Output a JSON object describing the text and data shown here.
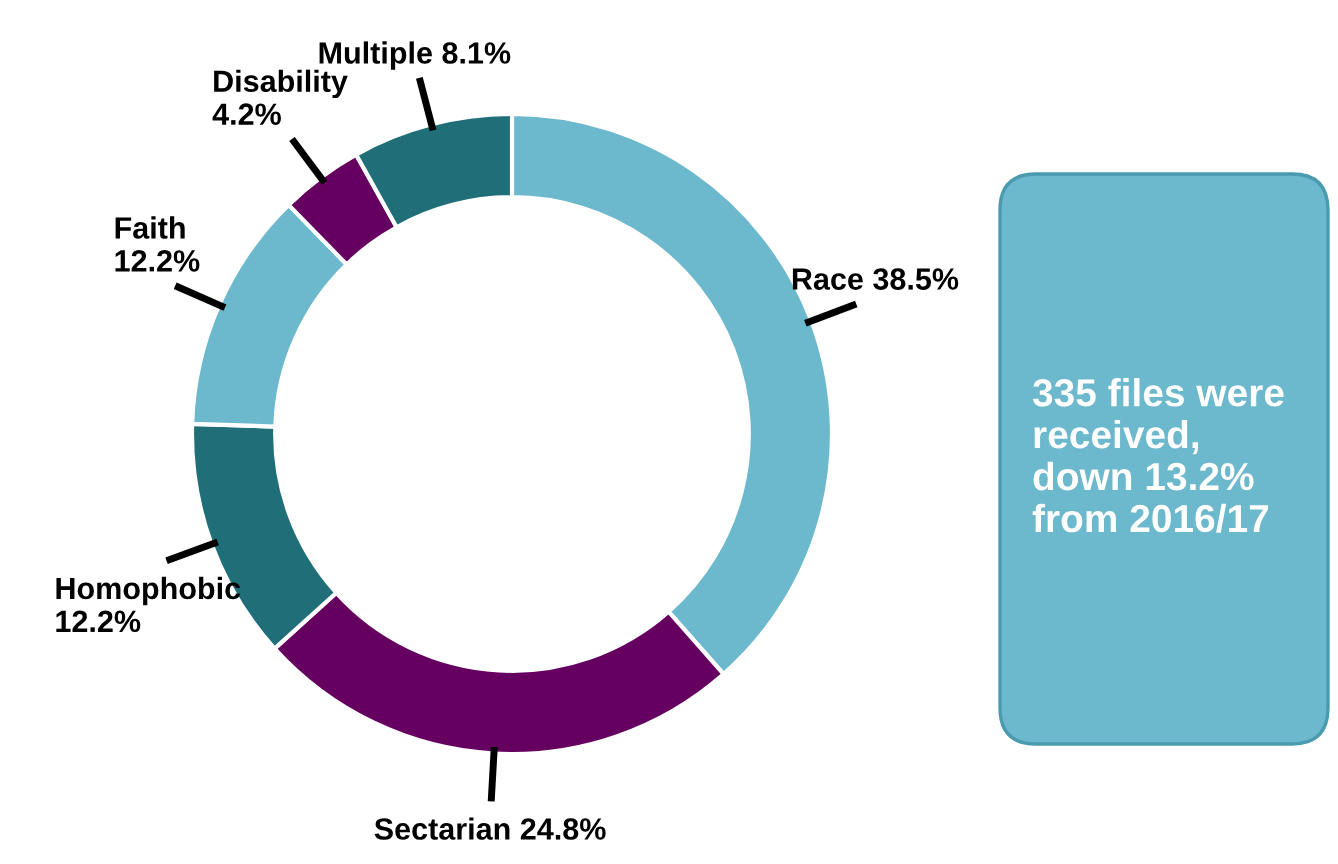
{
  "chart_data": {
    "type": "donut",
    "categories": [
      "Race",
      "Sectarian",
      "Homophobic",
      "Faith",
      "Disability",
      "Multiple"
    ],
    "values": [
      38.5,
      24.8,
      12.2,
      12.2,
      4.2,
      8.1
    ],
    "colors": [
      "#6cb8cc",
      "#650060",
      "#1f6e78",
      "#6cb8cc",
      "#650060",
      "#1f6e78"
    ],
    "value_labels": [
      "38.5%",
      "24.8%",
      "12.2%",
      "12.2%",
      "4.2%",
      "8.1%"
    ],
    "annotations": [
      "335 files were received, down 13.2% from 2016/17"
    ]
  }
}
